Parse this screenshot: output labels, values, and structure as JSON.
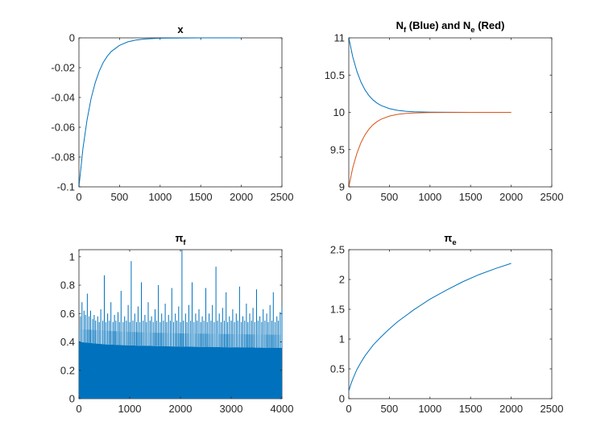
{
  "chart_data": [
    {
      "type": "line",
      "title": "x",
      "xlim": [
        0,
        2500
      ],
      "ylim": [
        -0.1,
        0
      ],
      "xticks": [
        "0",
        "500",
        "1000",
        "1500",
        "2000",
        "2500"
      ],
      "yticks": [
        "-0.1",
        "-0.08",
        "-0.06",
        "-0.04",
        "-0.02",
        "0"
      ],
      "grid": false,
      "series": [
        {
          "color": "#0072BD",
          "x": [
            0,
            50,
            100,
            150,
            200,
            250,
            300,
            350,
            400,
            500,
            600,
            700,
            800,
            1000,
            1200,
            1500,
            2000
          ],
          "y": [
            -0.1,
            -0.0741,
            -0.0549,
            -0.0407,
            -0.0301,
            -0.0223,
            -0.0165,
            -0.0122,
            -0.0091,
            -0.005,
            -0.0027,
            -0.0015,
            -0.0008,
            -0.0002,
            -0.0001,
            0,
            0
          ]
        }
      ]
    },
    {
      "type": "line",
      "title_parts": [
        "N",
        "f",
        " (Blue) and N",
        "e",
        " (Red)"
      ],
      "xlim": [
        0,
        2500
      ],
      "ylim": [
        9,
        11
      ],
      "xticks": [
        "0",
        "500",
        "1000",
        "1500",
        "2000",
        "2500"
      ],
      "yticks": [
        "9",
        "9.5",
        "10",
        "10.5",
        "11"
      ],
      "grid": false,
      "series": [
        {
          "color": "#0072BD",
          "x": [
            0,
            50,
            100,
            150,
            200,
            250,
            300,
            350,
            400,
            500,
            600,
            700,
            800,
            1000,
            1200,
            1500,
            2000
          ],
          "y": [
            11,
            10.741,
            10.549,
            10.407,
            10.301,
            10.223,
            10.165,
            10.122,
            10.091,
            10.05,
            10.027,
            10.015,
            10.008,
            10.002,
            10.001,
            10,
            10
          ]
        },
        {
          "color": "#D95319",
          "x": [
            0,
            50,
            100,
            150,
            200,
            250,
            300,
            350,
            400,
            500,
            600,
            700,
            800,
            1000,
            1200,
            1500,
            2000
          ],
          "y": [
            9,
            9.259,
            9.451,
            9.593,
            9.699,
            9.777,
            9.835,
            9.878,
            9.909,
            9.95,
            9.973,
            9.985,
            9.992,
            9.998,
            9.999,
            10,
            10
          ]
        }
      ]
    },
    {
      "type": "line",
      "title_parts": [
        "π",
        "f"
      ],
      "xlim": [
        0,
        4000
      ],
      "ylim": [
        0,
        1.05
      ],
      "xticks": [
        "0",
        "1000",
        "2000",
        "3000",
        "4000"
      ],
      "yticks": [
        "0",
        "0.2",
        "0.4",
        "0.6",
        "0.8",
        "1"
      ],
      "grid": false,
      "period": 31,
      "floor": 0,
      "band_x": [
        0,
        500,
        1000,
        2000,
        3000,
        4000
      ],
      "band_y": [
        0.4,
        0.383,
        0.375,
        0.367,
        0.362,
        0.358
      ],
      "envelope_x": [
        0,
        1000,
        2000,
        3000,
        4000
      ],
      "envelope_y": [
        0.49,
        0.47,
        0.46,
        0.455,
        0.45
      ],
      "spike_x": [
        30,
        60,
        100,
        130,
        165,
        200,
        230,
        270,
        300,
        330,
        370,
        400,
        430,
        470,
        500,
        530,
        565,
        600,
        630,
        670,
        700,
        730,
        770,
        800,
        830,
        870,
        900,
        935,
        970,
        1000,
        1030,
        1065,
        1100,
        1135,
        1165,
        1200,
        1230,
        1265,
        1300,
        1330,
        1365,
        1400,
        1430,
        1465,
        1500,
        1530,
        1565,
        1600,
        1630,
        1665,
        1700,
        1730,
        1765,
        1800,
        1830,
        1865,
        1900,
        1930,
        1965,
        2000,
        2030,
        2060,
        2100,
        2130,
        2165,
        2200,
        2230,
        2265,
        2300,
        2330,
        2365,
        2400,
        2430,
        2465,
        2500,
        2530,
        2565,
        2600,
        2630,
        2665,
        2700,
        2730,
        2765,
        2800,
        2830,
        2865,
        2900,
        2930,
        2965,
        3000,
        3030,
        3065,
        3100,
        3130,
        3165,
        3200,
        3230,
        3265,
        3300,
        3330,
        3365,
        3400,
        3430,
        3465,
        3500,
        3530,
        3565,
        3600,
        3630,
        3665,
        3700,
        3730,
        3765,
        3800,
        3830,
        3865,
        3900,
        3930,
        3965,
        4000
      ],
      "spike_y": [
        0.58,
        0.68,
        0.62,
        0.59,
        0.74,
        0.58,
        0.62,
        0.56,
        0.59,
        0.55,
        0.58,
        0.54,
        0.63,
        0.55,
        0.87,
        0.54,
        0.6,
        0.55,
        0.68,
        0.54,
        0.59,
        0.55,
        0.61,
        0.54,
        0.76,
        0.54,
        0.58,
        0.55,
        0.66,
        0.54,
        0.97,
        0.55,
        0.6,
        0.54,
        0.65,
        0.54,
        0.82,
        0.55,
        0.59,
        0.54,
        0.68,
        0.55,
        0.58,
        0.54,
        0.63,
        0.55,
        0.8,
        0.54,
        0.6,
        0.55,
        0.67,
        0.54,
        0.59,
        0.55,
        0.78,
        0.54,
        0.6,
        0.55,
        0.65,
        0.54,
        1.05,
        0.55,
        0.6,
        0.54,
        0.66,
        0.55,
        0.82,
        0.54,
        0.6,
        0.55,
        0.63,
        0.54,
        0.58,
        0.55,
        0.78,
        0.54,
        0.6,
        0.55,
        0.66,
        0.54,
        0.93,
        0.55,
        0.6,
        0.54,
        0.64,
        0.55,
        0.75,
        0.54,
        0.58,
        0.55,
        0.63,
        0.54,
        0.6,
        0.55,
        0.79,
        0.54,
        0.58,
        0.55,
        0.67,
        0.54,
        0.6,
        0.55,
        0.64,
        0.54,
        0.77,
        0.55,
        0.58,
        0.54,
        0.63,
        0.55,
        0.6,
        0.54,
        0.66,
        0.55,
        0.75,
        0.54,
        0.58,
        0.55,
        0.61,
        0.65
      ],
      "series": [
        {
          "color": "#0072BD"
        }
      ]
    },
    {
      "type": "line",
      "title_parts": [
        "π",
        "e"
      ],
      "xlim": [
        0,
        2500
      ],
      "ylim": [
        0,
        2.5
      ],
      "xticks": [
        "0",
        "500",
        "1000",
        "1500",
        "2000",
        "2500"
      ],
      "yticks": [
        "0",
        "0.5",
        "1",
        "1.5",
        "2",
        "2.5"
      ],
      "grid": false,
      "series": [
        {
          "color": "#0072BD",
          "x": [
            0,
            25,
            50,
            100,
            150,
            200,
            300,
            400,
            500,
            600,
            700,
            800,
            1000,
            1200,
            1400,
            1600,
            1800,
            2000
          ],
          "y": [
            0.13,
            0.24,
            0.33,
            0.49,
            0.61,
            0.72,
            0.9,
            1.04,
            1.17,
            1.29,
            1.39,
            1.49,
            1.67,
            1.82,
            1.96,
            2.08,
            2.18,
            2.27
          ]
        }
      ]
    }
  ]
}
